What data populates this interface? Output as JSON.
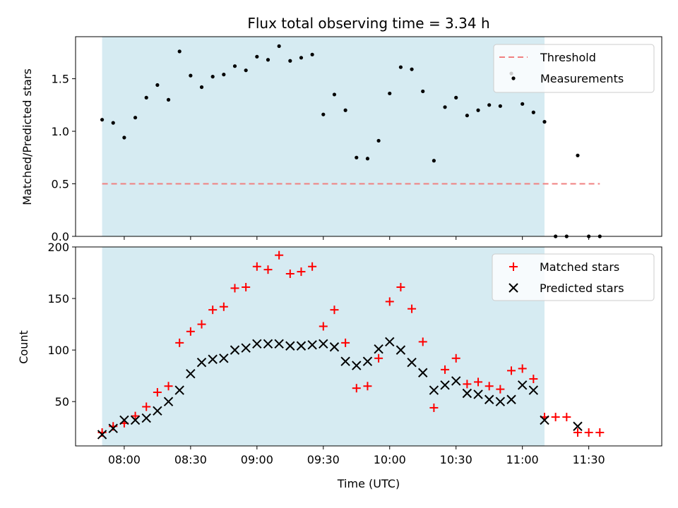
{
  "chart_data": [
    {
      "type": "scatter",
      "title": "Flux total observing time = 3.34 h",
      "xlabel": "",
      "ylabel": "Matched/Predicted stars",
      "ylim": [
        0,
        1.9
      ],
      "yticks": [
        "0.0",
        "0.5",
        "1.0",
        "1.5"
      ],
      "yticks_values": [
        0,
        0.5,
        1.0,
        1.5
      ],
      "shaded_region": {
        "x_start": "07:50",
        "x_end": "11:10",
        "color": "#add8e6"
      },
      "threshold": {
        "name": "Threshold",
        "value": 0.5,
        "x_start": "07:50",
        "x_end": "11:35",
        "color": "#f08080"
      },
      "legend": {
        "position": "upper right",
        "entries": [
          "Threshold",
          "Measurements"
        ]
      },
      "series": [
        {
          "name": "Measurements",
          "color": "#000000",
          "marker": "dot",
          "points": [
            [
              "07:50",
              1.11
            ],
            [
              "07:55",
              1.08
            ],
            [
              "08:00",
              0.94
            ],
            [
              "08:05",
              1.13
            ],
            [
              "08:10",
              1.32
            ],
            [
              "08:15",
              1.44
            ],
            [
              "08:20",
              1.3
            ],
            [
              "08:25",
              1.76
            ],
            [
              "08:30",
              1.53
            ],
            [
              "08:35",
              1.42
            ],
            [
              "08:40",
              1.52
            ],
            [
              "08:45",
              1.54
            ],
            [
              "08:50",
              1.62
            ],
            [
              "08:55",
              1.58
            ],
            [
              "09:00",
              1.71
            ],
            [
              "09:05",
              1.68
            ],
            [
              "09:10",
              1.81
            ],
            [
              "09:15",
              1.67
            ],
            [
              "09:20",
              1.7
            ],
            [
              "09:25",
              1.73
            ],
            [
              "09:30",
              1.16
            ],
            [
              "09:35",
              1.35
            ],
            [
              "09:40",
              1.2
            ],
            [
              "09:45",
              0.75
            ],
            [
              "09:50",
              0.74
            ],
            [
              "09:55",
              0.91
            ],
            [
              "10:00",
              1.36
            ],
            [
              "10:05",
              1.61
            ],
            [
              "10:10",
              1.59
            ],
            [
              "10:15",
              1.38
            ],
            [
              "10:20",
              0.72
            ],
            [
              "10:25",
              1.23
            ],
            [
              "10:30",
              1.32
            ],
            [
              "10:35",
              1.15
            ],
            [
              "10:40",
              1.2
            ],
            [
              "10:45",
              1.25
            ],
            [
              "10:50",
              1.24
            ],
            [
              "10:55",
              1.55
            ],
            [
              "11:00",
              1.26
            ],
            [
              "11:05",
              1.18
            ],
            [
              "11:10",
              1.09
            ],
            [
              "11:15",
              0.0
            ],
            [
              "11:20",
              0.0
            ],
            [
              "11:25",
              0.77
            ],
            [
              "11:30",
              0.0
            ],
            [
              "11:35",
              0.0
            ]
          ]
        }
      ]
    },
    {
      "type": "scatter",
      "title": "",
      "xlabel": "Time (UTC)",
      "ylabel": "Count",
      "ylim": [
        7,
        200
      ],
      "yticks": [
        "50",
        "100",
        "150",
        "200"
      ],
      "yticks_values": [
        50,
        100,
        150,
        200
      ],
      "xlim": [
        "07:38",
        "12:03"
      ],
      "xticks": [
        "08:00",
        "08:30",
        "09:00",
        "09:30",
        "10:00",
        "10:30",
        "11:00",
        "11:30"
      ],
      "shaded_region": {
        "x_start": "07:50",
        "x_end": "11:10",
        "color": "#add8e6"
      },
      "legend": {
        "position": "upper right",
        "entries": [
          "Matched stars",
          "Predicted stars"
        ]
      },
      "series": [
        {
          "name": "Matched stars",
          "color": "#ff0000",
          "marker": "plus",
          "points": [
            [
              "07:50",
              20
            ],
            [
              "07:55",
              26
            ],
            [
              "08:00",
              29
            ],
            [
              "08:05",
              36
            ],
            [
              "08:10",
              45
            ],
            [
              "08:15",
              59
            ],
            [
              "08:20",
              65
            ],
            [
              "08:25",
              107
            ],
            [
              "08:30",
              118
            ],
            [
              "08:35",
              125
            ],
            [
              "08:40",
              139
            ],
            [
              "08:45",
              142
            ],
            [
              "08:50",
              160
            ],
            [
              "08:55",
              161
            ],
            [
              "09:00",
              181
            ],
            [
              "09:05",
              178
            ],
            [
              "09:10",
              192
            ],
            [
              "09:15",
              174
            ],
            [
              "09:20",
              176
            ],
            [
              "09:25",
              181
            ],
            [
              "09:30",
              123
            ],
            [
              "09:35",
              139
            ],
            [
              "09:40",
              107
            ],
            [
              "09:45",
              63
            ],
            [
              "09:50",
              65
            ],
            [
              "09:55",
              92
            ],
            [
              "10:00",
              147
            ],
            [
              "10:05",
              161
            ],
            [
              "10:10",
              140
            ],
            [
              "10:15",
              108
            ],
            [
              "10:20",
              44
            ],
            [
              "10:25",
              81
            ],
            [
              "10:30",
              92
            ],
            [
              "10:35",
              67
            ],
            [
              "10:40",
              69
            ],
            [
              "10:45",
              65
            ],
            [
              "10:50",
              62
            ],
            [
              "10:55",
              80
            ],
            [
              "11:00",
              82
            ],
            [
              "11:05",
              72
            ],
            [
              "11:10",
              35
            ],
            [
              "11:15",
              35
            ],
            [
              "11:20",
              35
            ],
            [
              "11:25",
              20
            ],
            [
              "11:30",
              20
            ],
            [
              "11:35",
              20
            ]
          ]
        },
        {
          "name": "Predicted stars",
          "color": "#000000",
          "marker": "x",
          "points": [
            [
              "07:50",
              18
            ],
            [
              "07:55",
              24
            ],
            [
              "08:00",
              32
            ],
            [
              "08:05",
              32
            ],
            [
              "08:10",
              34
            ],
            [
              "08:15",
              41
            ],
            [
              "08:20",
              50
            ],
            [
              "08:25",
              61
            ],
            [
              "08:30",
              77
            ],
            [
              "08:35",
              88
            ],
            [
              "08:40",
              91
            ],
            [
              "08:45",
              92
            ],
            [
              "08:50",
              100
            ],
            [
              "08:55",
              102
            ],
            [
              "09:00",
              106
            ],
            [
              "09:05",
              106
            ],
            [
              "09:10",
              106
            ],
            [
              "09:15",
              104
            ],
            [
              "09:20",
              104
            ],
            [
              "09:25",
              105
            ],
            [
              "09:30",
              106
            ],
            [
              "09:35",
              103
            ],
            [
              "09:40",
              89
            ],
            [
              "09:45",
              85
            ],
            [
              "09:50",
              89
            ],
            [
              "09:55",
              101
            ],
            [
              "10:00",
              108
            ],
            [
              "10:05",
              100
            ],
            [
              "10:10",
              88
            ],
            [
              "10:15",
              78
            ],
            [
              "10:20",
              61
            ],
            [
              "10:25",
              66
            ],
            [
              "10:30",
              70
            ],
            [
              "10:35",
              58
            ],
            [
              "10:40",
              57
            ],
            [
              "10:45",
              52
            ],
            [
              "10:50",
              50
            ],
            [
              "10:55",
              52
            ],
            [
              "11:00",
              66
            ],
            [
              "11:05",
              61
            ],
            [
              "11:10",
              32
            ],
            [
              "11:25",
              26
            ]
          ]
        }
      ]
    }
  ]
}
